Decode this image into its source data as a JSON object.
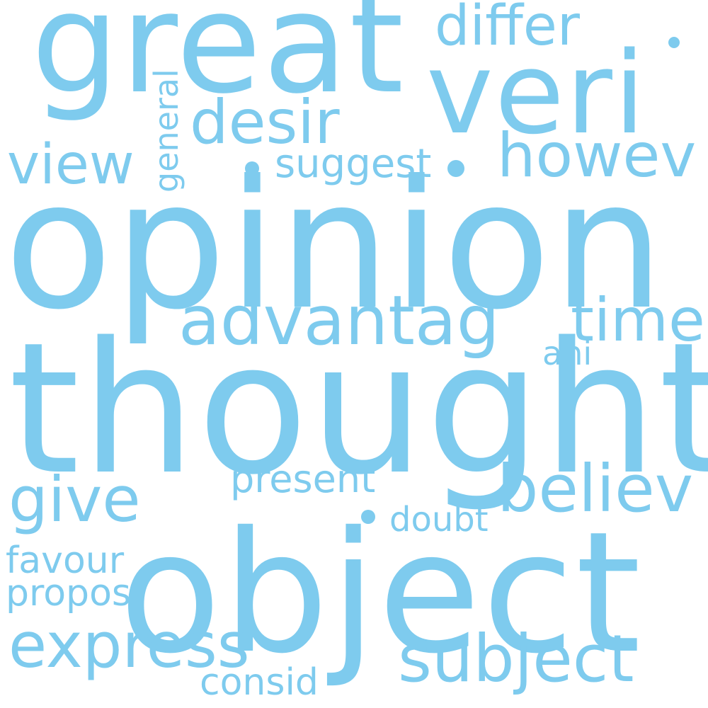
{
  "word_cloud": {
    "color": "#7ecbee",
    "background": "#ffffff",
    "words": {
      "great": "great",
      "veri": "veri",
      "differ": "differ",
      "desir": "desir",
      "howev": "howev",
      "view": "view",
      "general": "general",
      "suggest": "suggest",
      "opinion": "opinion",
      "advantag": "advantag",
      "time": "time",
      "ani": "ani",
      "thought": "thought",
      "believ": "believ",
      "present": "present",
      "give": "give",
      "doubt": "doubt",
      "favour": "favour",
      "propos": "propos",
      "object": "object",
      "express": "express",
      "subject": "subject",
      "consid": "consid"
    }
  }
}
